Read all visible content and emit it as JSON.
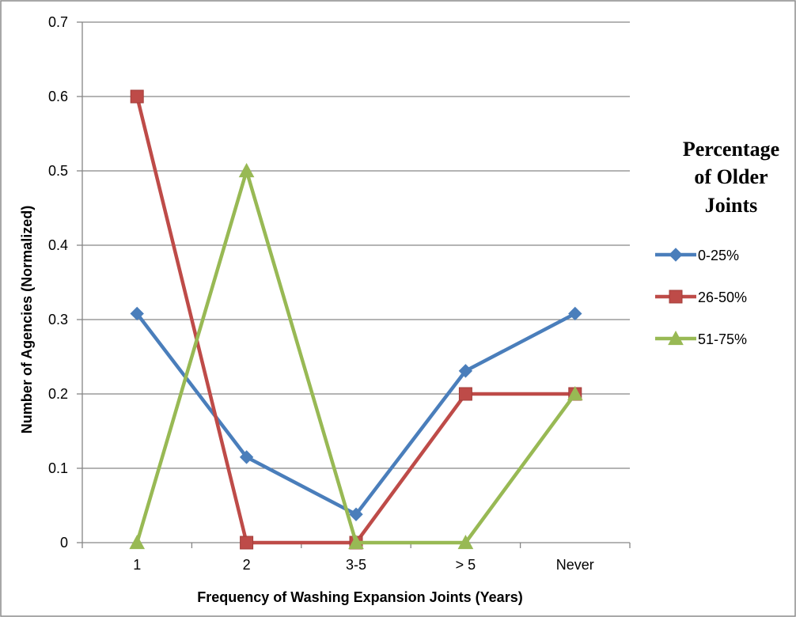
{
  "chart_data": {
    "type": "line",
    "categories": [
      "1",
      "2",
      "3-5",
      "> 5",
      "Never"
    ],
    "xlabel": "Frequency of Washing Expansion Joints (Years)",
    "ylabel": "Number of Agencies (Normalized)",
    "ylim": [
      0,
      0.7
    ],
    "yticks": [
      "0",
      "0.1",
      "0.2",
      "0.3",
      "0.4",
      "0.5",
      "0.6",
      "0.7"
    ],
    "grid": true,
    "legend": {
      "placement": "right",
      "title_lines": [
        "Percentage",
        "of Older",
        "Joints"
      ]
    },
    "series": [
      {
        "name": "0-25%",
        "color": "#4a7ebb",
        "marker": "diamond",
        "values": [
          0.308,
          0.115,
          0.038,
          0.231,
          0.308
        ]
      },
      {
        "name": "26-50%",
        "color": "#be4b48",
        "marker": "square",
        "values": [
          0.6,
          0,
          0,
          0.2,
          0.2
        ]
      },
      {
        "name": "51-75%",
        "color": "#98b954",
        "marker": "triangle",
        "values": [
          0,
          0.5,
          0,
          0,
          0.2
        ]
      }
    ]
  }
}
